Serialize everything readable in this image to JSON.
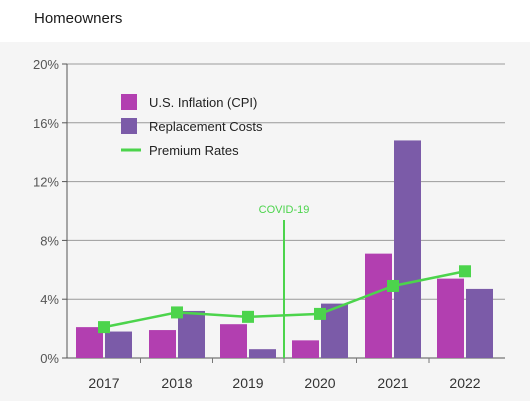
{
  "page_title": "Homeowners",
  "chart_data": {
    "type": "bar",
    "categories": [
      "2017",
      "2018",
      "2019",
      "2020",
      "2021",
      "2022"
    ],
    "series": [
      {
        "name": "U.S. Inflation (CPI)",
        "type": "bar",
        "color": "#b23fb0",
        "values": [
          2.1,
          1.9,
          2.3,
          1.2,
          7.1,
          5.4
        ]
      },
      {
        "name": "Replacement Costs",
        "type": "bar",
        "color": "#7b5ba8",
        "values": [
          1.8,
          3.2,
          0.6,
          3.7,
          14.8,
          4.7
        ]
      },
      {
        "name": "Premium Rates",
        "type": "line",
        "color": "#4cd44c",
        "values": [
          2.1,
          3.1,
          2.8,
          3.0,
          4.9,
          5.9
        ]
      }
    ],
    "ylim": [
      0,
      20
    ],
    "y_ticks": [
      "0%",
      "4%",
      "8%",
      "12%",
      "16%",
      "20%"
    ],
    "y_tick_values": [
      0,
      4,
      8,
      12,
      16,
      20
    ],
    "grid": true,
    "legend": "top-left",
    "annotation": {
      "label": "COVID-19",
      "between": [
        "2019",
        "2020"
      ],
      "color": "#4cd44c"
    }
  }
}
